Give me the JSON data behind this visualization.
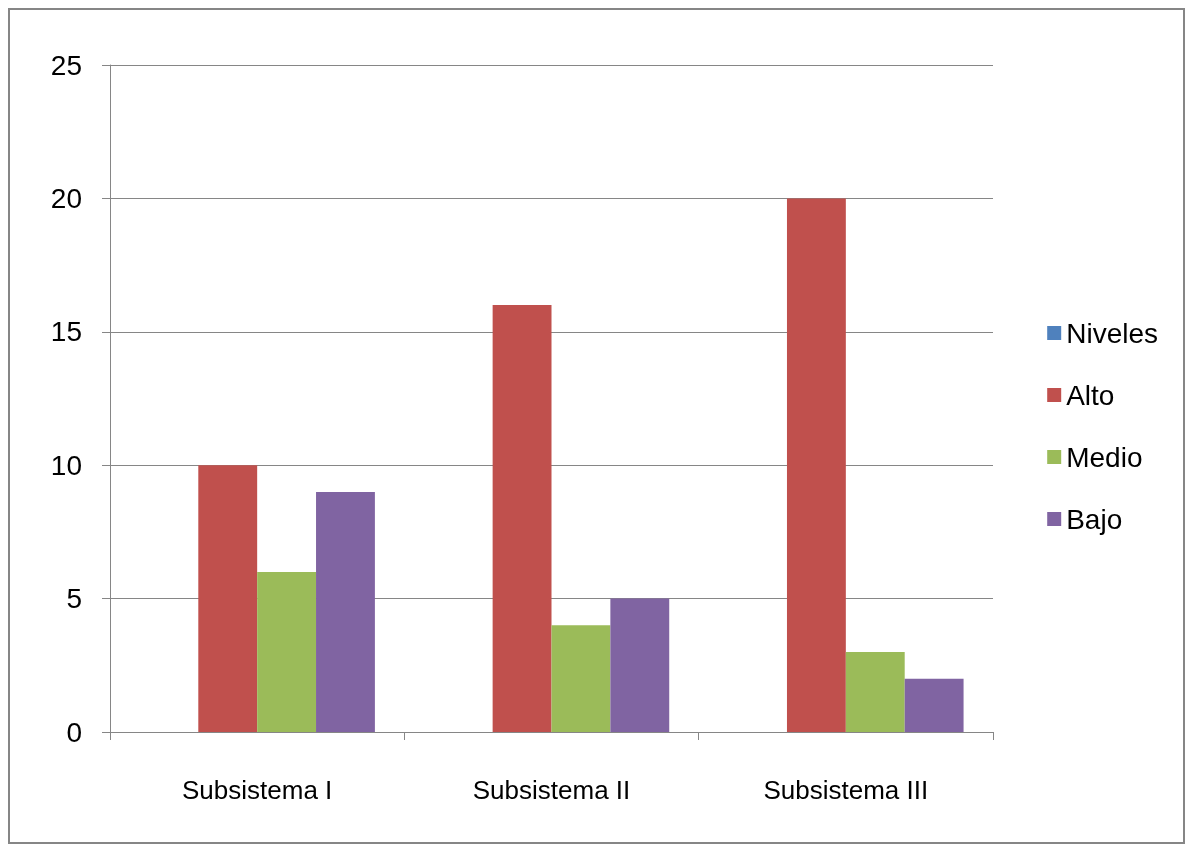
{
  "chart_data": {
    "type": "bar",
    "categories": [
      "Subsistema I",
      "Subsistema II",
      "Subsistema III"
    ],
    "series": [
      {
        "name": "Niveles",
        "color": "#4f81bd",
        "values": [
          null,
          null,
          null
        ]
      },
      {
        "name": "Alto",
        "color": "#c0504d",
        "values": [
          10,
          16,
          20
        ]
      },
      {
        "name": "Medio",
        "color": "#9bbb59",
        "values": [
          6,
          4,
          3
        ]
      },
      {
        "name": "Bajo",
        "color": "#8064a2",
        "values": [
          9,
          5,
          2
        ]
      }
    ],
    "ylim": [
      0,
      25
    ],
    "yticks": [
      0,
      5,
      10,
      15,
      20,
      25
    ],
    "grid": "y",
    "legend": "right"
  }
}
